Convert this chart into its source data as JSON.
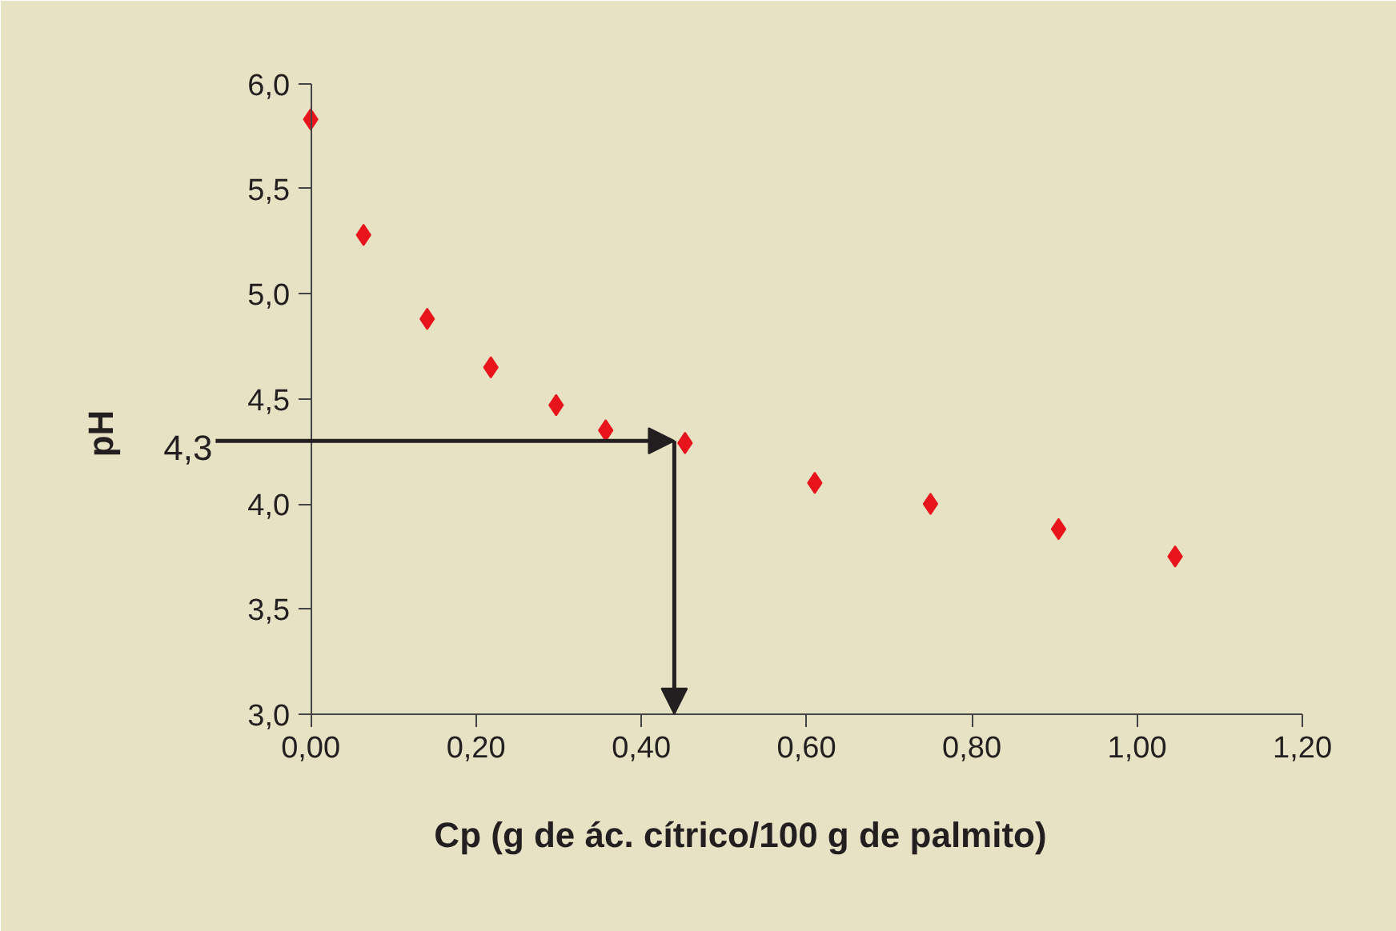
{
  "chart_data": {
    "type": "scatter",
    "xlabel": "Cp (g de ác. cítrico/100 g de palmito)",
    "ylabel": "pH",
    "x": [
      0.0,
      0.064,
      0.141,
      0.218,
      0.297,
      0.357,
      0.453,
      0.61,
      0.75,
      0.905,
      1.046
    ],
    "series": [
      {
        "color": "#e8141c",
        "values": [
          5.83,
          5.28,
          4.88,
          4.65,
          4.47,
          4.35,
          4.29,
          4.1,
          4.0,
          3.88,
          3.75
        ]
      }
    ],
    "marker": "diamond",
    "grid": false,
    "xlim": [
      0,
      1.2
    ],
    "xticks": [
      {
        "value": 0,
        "label": "0,00"
      },
      {
        "value": 0.2,
        "label": "0,20"
      },
      {
        "value": 0.4,
        "label": "0,40"
      },
      {
        "value": 0.6,
        "label": "0,60"
      },
      {
        "value": 0.8,
        "label": "0,80"
      },
      {
        "value": 1.0,
        "label": "1,00"
      },
      {
        "value": 1.2,
        "label": "1,20"
      }
    ],
    "ylim": [
      3.0,
      6.0
    ],
    "yticks": [
      {
        "value": 3.0,
        "label": "3,0"
      },
      {
        "value": 3.5,
        "label": "3,5"
      },
      {
        "value": 4.0,
        "label": "4,0"
      },
      {
        "value": 4.5,
        "label": "4,5"
      },
      {
        "value": 5.0,
        "label": "5,0"
      },
      {
        "value": 5.5,
        "label": "5,5"
      },
      {
        "value": 6.0,
        "label": "6,0"
      }
    ],
    "annotations": [
      {
        "text": "4,3",
        "x": 0.44,
        "y": 4.3
      }
    ]
  }
}
